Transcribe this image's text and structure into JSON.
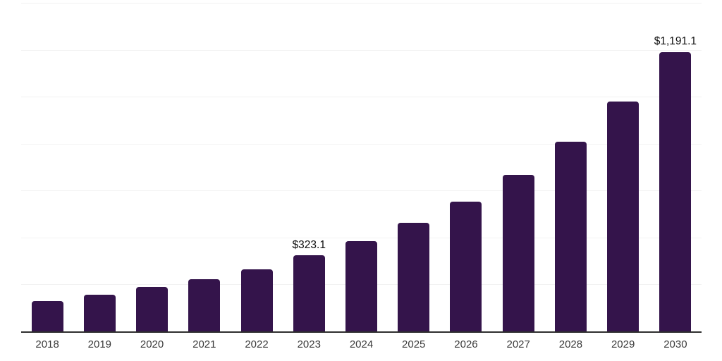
{
  "chart_data": {
    "type": "bar",
    "title": "",
    "xlabel": "",
    "ylabel": "",
    "categories": [
      "2018",
      "2019",
      "2020",
      "2021",
      "2022",
      "2023",
      "2024",
      "2025",
      "2026",
      "2027",
      "2028",
      "2029",
      "2030"
    ],
    "values": [
      130,
      155,
      188,
      221,
      265,
      323.1,
      386,
      463,
      553,
      666,
      809,
      978,
      1191.1
    ],
    "point_labels": [
      "",
      "",
      "",
      "",
      "",
      "$323.1",
      "",
      "",
      "",
      "",
      "",
      "",
      "$1,191.1"
    ],
    "ylim": [
      0,
      1400
    ],
    "gridline_step": 200,
    "grid": "horizontal-only",
    "legend": "none",
    "y_axis_labels_visible": false,
    "colors": {
      "bar": "#34144B",
      "axis": "#2e2e2e",
      "gridline": "#f2f2f2",
      "data_label_text": "#0f0f0f",
      "tick_text": "#3a3a3a",
      "background": "#ffffff"
    }
  }
}
